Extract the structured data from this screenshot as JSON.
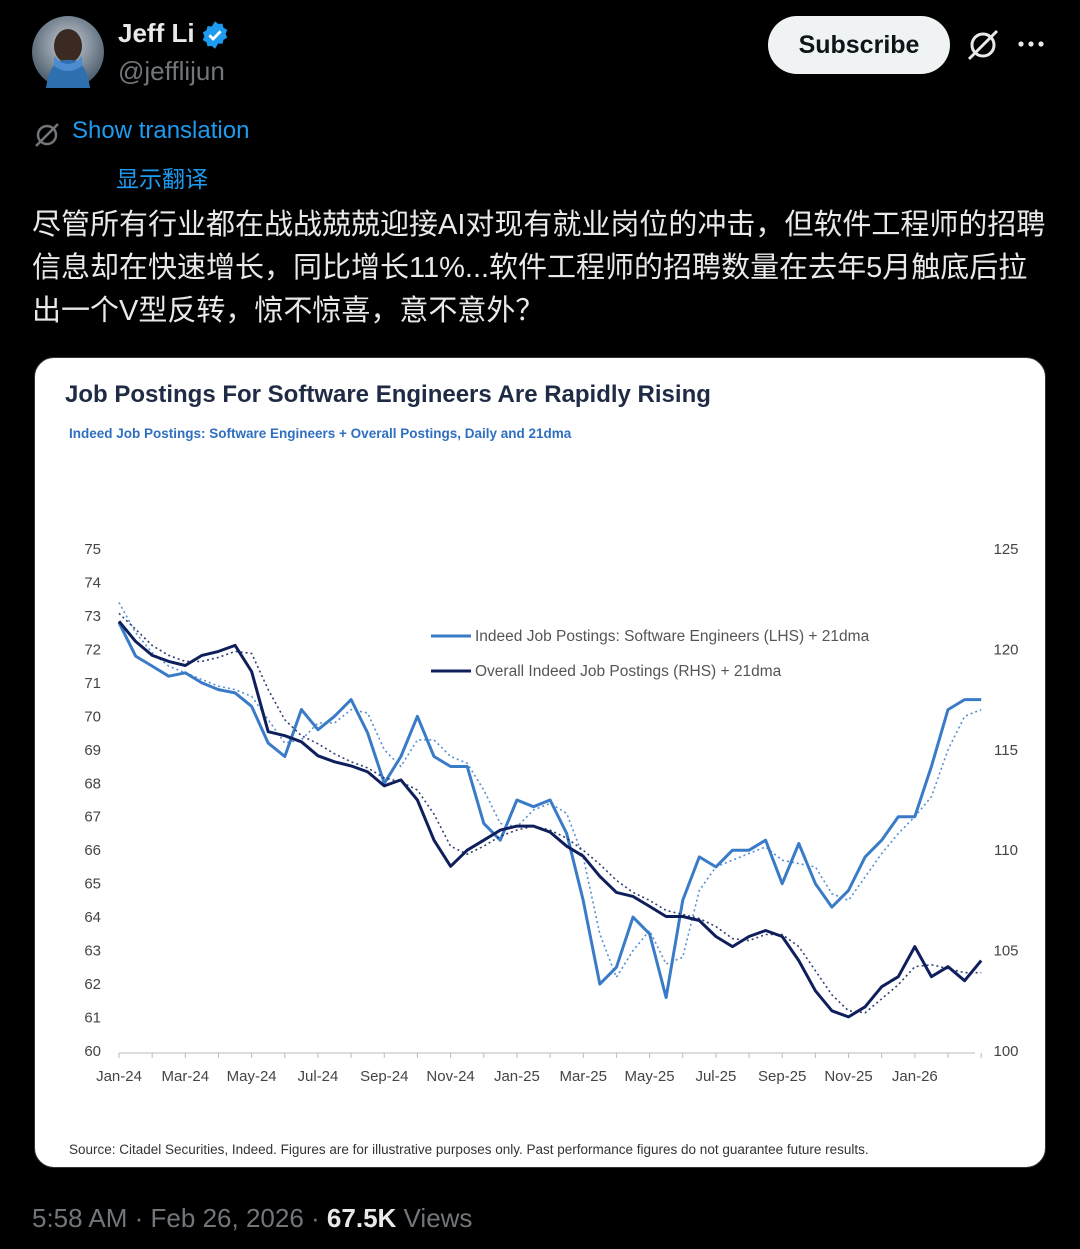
{
  "author": {
    "name": "Jeff Li",
    "handle": "@jefflijun"
  },
  "subscribe_button": "Subscribe",
  "translation": {
    "link": "Show translation",
    "label": "显示翻译"
  },
  "body": "尽管所有行业都在战战兢兢迎接AI对现有就业岗位的冲击，但软件工程师的招聘信息却在快速增长，同比增长11%...软件工程师的招聘数量在去年5月触底后拉出一个V型反转，惊不惊喜，意不意外？",
  "footer": {
    "time": "5:58 AM",
    "separator": "·",
    "date": "Feb 26, 2026",
    "views_count": "67.5K",
    "views_label": "Views"
  },
  "chart_data": {
    "type": "line",
    "title": "Job Postings For Software Engineers Are Rapidly Rising",
    "subtitle": "Indeed Job Postings: Software Engineers + Overall Postings, Daily and 21dma",
    "source": "Source: Citadel Securities, Indeed. Figures are for illustrative purposes only. Past performance figures do not guarantee future results.",
    "categories": [
      "Jan-24",
      null,
      null,
      null,
      "Mar-24",
      null,
      null,
      null,
      "May-24",
      null,
      null,
      null,
      "Jul-24",
      null,
      null,
      null,
      "Sep-24",
      null,
      null,
      null,
      "Nov-24",
      null,
      null,
      null,
      "Jan-25",
      null,
      null,
      null,
      "Mar-25",
      null,
      null,
      null,
      "May-25",
      null,
      null,
      null,
      "Jul-25",
      null,
      null,
      null,
      "Sep-25",
      null,
      null,
      null,
      "Nov-25",
      null,
      null,
      null,
      "Jan-26",
      null,
      null,
      null,
      null
    ],
    "ylim": [
      60,
      75
    ],
    "yticks": [
      60,
      61,
      62,
      63,
      64,
      65,
      66,
      67,
      68,
      69,
      70,
      71,
      72,
      73,
      74,
      75
    ],
    "y2lim": [
      100,
      125
    ],
    "y2ticks": [
      100,
      105,
      110,
      115,
      120,
      125
    ],
    "series": [
      {
        "name": "Indeed Job Postings: Software Engineers (LHS) + 21dma",
        "color": "#3a7bc8",
        "axis": "y",
        "values": [
          72.8,
          71.8,
          71.5,
          71.2,
          71.3,
          71.0,
          70.8,
          70.7,
          70.3,
          69.2,
          68.8,
          70.2,
          69.6,
          70.0,
          70.5,
          69.5,
          68.0,
          68.8,
          70.0,
          68.8,
          68.5,
          68.5,
          66.8,
          66.3,
          67.5,
          67.3,
          67.5,
          66.5,
          64.5,
          62.0,
          62.5,
          64.0,
          63.5,
          61.6,
          64.5,
          65.8,
          65.5,
          66.0,
          66.0,
          66.3,
          65.0,
          66.2,
          65.0,
          64.3,
          64.8,
          65.8,
          66.3,
          67.0,
          67.0,
          68.5,
          70.2,
          70.5,
          70.5
        ],
        "dma": [
          73.4,
          72.5,
          71.9,
          71.5,
          71.3,
          71.1,
          70.9,
          70.8,
          70.6,
          69.9,
          69.2,
          69.3,
          69.8,
          69.8,
          70.2,
          70.1,
          69.0,
          68.5,
          69.3,
          69.3,
          68.8,
          68.6,
          67.8,
          66.8,
          66.7,
          67.2,
          67.4,
          67.1,
          65.8,
          63.5,
          62.2,
          63.0,
          63.6,
          62.6,
          62.8,
          64.8,
          65.5,
          65.7,
          65.9,
          66.1,
          65.7,
          65.6,
          65.5,
          64.7,
          64.5,
          65.2,
          65.9,
          66.5,
          67.0,
          67.6,
          69.0,
          70.0,
          70.2
        ]
      },
      {
        "name": "Overall Indeed Job Postings (RHS) + 21dma",
        "color": "#0f1f5c",
        "axis": "y2",
        "values": [
          121.4,
          120.4,
          119.7,
          119.4,
          119.2,
          119.7,
          119.9,
          120.2,
          118.9,
          115.9,
          115.7,
          115.4,
          114.7,
          114.4,
          114.2,
          113.9,
          113.2,
          113.5,
          112.5,
          110.5,
          109.2,
          110.0,
          110.5,
          111.0,
          111.2,
          111.2,
          110.9,
          110.2,
          109.7,
          108.7,
          107.9,
          107.7,
          107.2,
          106.7,
          106.7,
          106.5,
          105.7,
          105.2,
          105.7,
          106.0,
          105.7,
          104.5,
          103.0,
          102.0,
          101.7,
          102.2,
          103.2,
          103.7,
          105.2,
          103.7,
          104.2,
          103.5,
          104.5
        ],
        "dma": [
          121.8,
          121.0,
          120.2,
          119.7,
          119.4,
          119.4,
          119.6,
          119.9,
          119.8,
          118.0,
          116.5,
          115.7,
          115.3,
          114.8,
          114.4,
          114.1,
          113.6,
          113.4,
          113.0,
          111.8,
          110.2,
          109.8,
          110.2,
          110.7,
          111.0,
          111.2,
          111.0,
          110.6,
          110.0,
          109.3,
          108.5,
          107.9,
          107.5,
          107.0,
          106.8,
          106.6,
          106.2,
          105.6,
          105.5,
          105.8,
          105.8,
          105.2,
          104.0,
          102.8,
          102.0,
          101.9,
          102.6,
          103.3,
          104.2,
          104.3,
          104.1,
          103.9,
          103.9
        ]
      }
    ]
  }
}
